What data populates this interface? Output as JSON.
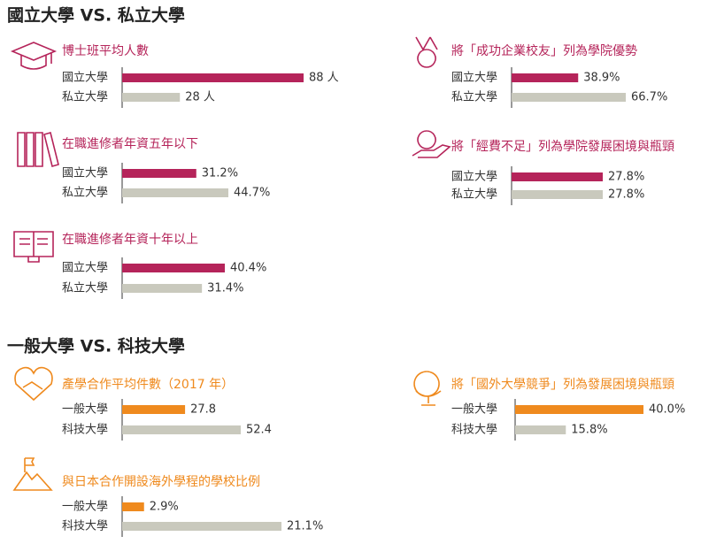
{
  "sections": [
    {
      "title": "國立大學 VS. 私立大學"
    },
    {
      "title": "一般大學 VS. 科技大學"
    }
  ],
  "chart_data": [
    {
      "type": "bar",
      "title": "博士班平均人數",
      "categories": [
        "國立大學",
        "私立大學"
      ],
      "values": [
        88,
        28
      ],
      "value_labels": [
        "88 人",
        "28 人"
      ],
      "colors": [
        "#b5245a",
        "#c9c9bd"
      ]
    },
    {
      "type": "bar",
      "title": "在職進修者年資五年以下",
      "categories": [
        "國立大學",
        "私立大學"
      ],
      "values": [
        31.2,
        44.7
      ],
      "value_labels": [
        "31.2%",
        "44.7%"
      ],
      "colors": [
        "#b5245a",
        "#c9c9bd"
      ]
    },
    {
      "type": "bar",
      "title": "在職進修者年資十年以上",
      "categories": [
        "國立大學",
        "私立大學"
      ],
      "values": [
        40.4,
        31.4
      ],
      "value_labels": [
        "40.4%",
        "31.4%"
      ],
      "colors": [
        "#b5245a",
        "#c9c9bd"
      ]
    },
    {
      "type": "bar",
      "title": "將「成功企業校友」列為學院優勢",
      "categories": [
        "國立大學",
        "私立大學"
      ],
      "values": [
        38.9,
        66.7
      ],
      "value_labels": [
        "38.9%",
        "66.7%"
      ],
      "colors": [
        "#b5245a",
        "#c9c9bd"
      ]
    },
    {
      "type": "bar",
      "title": "將「經費不足」列為學院發展困境與瓶頸",
      "categories": [
        "國立大學",
        "私立大學"
      ],
      "values": [
        27.8,
        27.8
      ],
      "value_labels": [
        "27.8%",
        "27.8%"
      ],
      "colors": [
        "#b5245a",
        "#c9c9bd"
      ]
    },
    {
      "type": "bar",
      "title": "產學合作平均件數（2017 年）",
      "categories": [
        "一般大學",
        "科技大學"
      ],
      "values": [
        27.8,
        52.4
      ],
      "colors": [
        "#ef8a1e",
        "#c9c9bd"
      ]
    },
    {
      "type": "bar",
      "title": "與日本合作開設海外學程的學校比例",
      "categories": [
        "一般大學",
        "科技大學"
      ],
      "values": [
        2.9,
        21.1
      ],
      "value_labels": [
        "2.9%",
        "21.1%"
      ],
      "colors": [
        "#ef8a1e",
        "#c9c9bd"
      ]
    },
    {
      "type": "bar",
      "title": "將「國外大學競爭」列為發展困境與瓶頸",
      "categories": [
        "一般大學",
        "科技大學"
      ],
      "values": [
        40.0,
        15.8
      ],
      "value_labels": [
        "40.0%",
        "15.8%"
      ],
      "colors": [
        "#ef8a1e",
        "#c9c9bd"
      ]
    }
  ]
}
